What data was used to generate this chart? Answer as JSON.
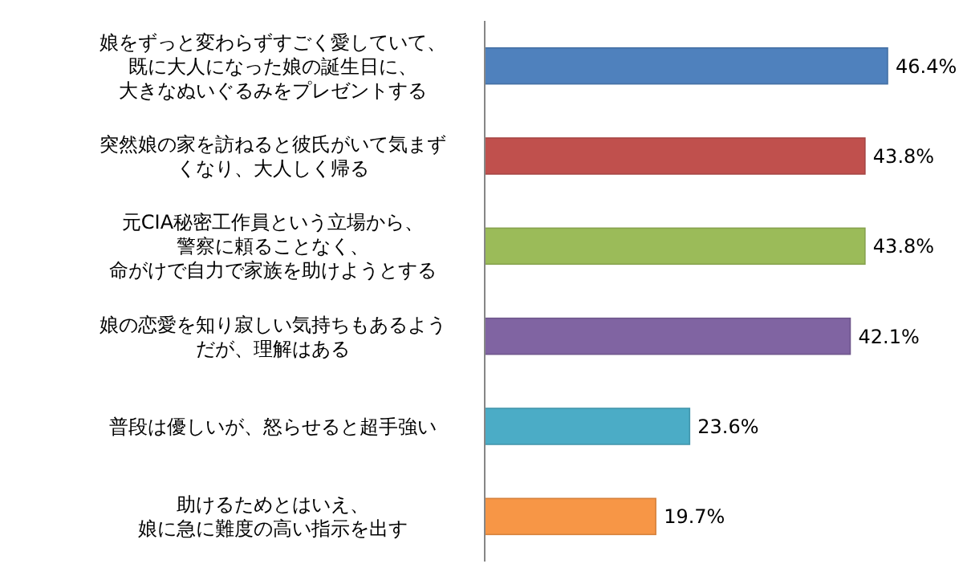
{
  "chart_data": {
    "type": "bar",
    "orientation": "horizontal",
    "categories": [
      "娘をずっと変わらずすごく愛していて、既に大人になった娘の誕生日に、大きなぬいぐるみをプレゼントする",
      "突然娘の家を訪ねると彼氏がいて気まずくなり、大人しく帰る",
      "元CIA秘密工作員という立場から、警察に頼ることなく、命がけで自力で家族を助けようとする",
      "娘の恋愛を知り寂しい気持ちもあるようだが、理解はある",
      "普段は優しいが、怒らせると超手強い",
      "助けるためとはいえ、娘に急に難度の高い指示を出す"
    ],
    "values": [
      46.4,
      43.8,
      43.8,
      42.1,
      23.6,
      19.7
    ],
    "value_labels": [
      "46.4%",
      "43.8%",
      "43.8%",
      "42.1%",
      "23.6%",
      "19.7%"
    ],
    "colors": [
      "#4f81bd",
      "#c0504d",
      "#9bbb59",
      "#8064a2",
      "#4bacc6",
      "#f79646"
    ]
  }
}
